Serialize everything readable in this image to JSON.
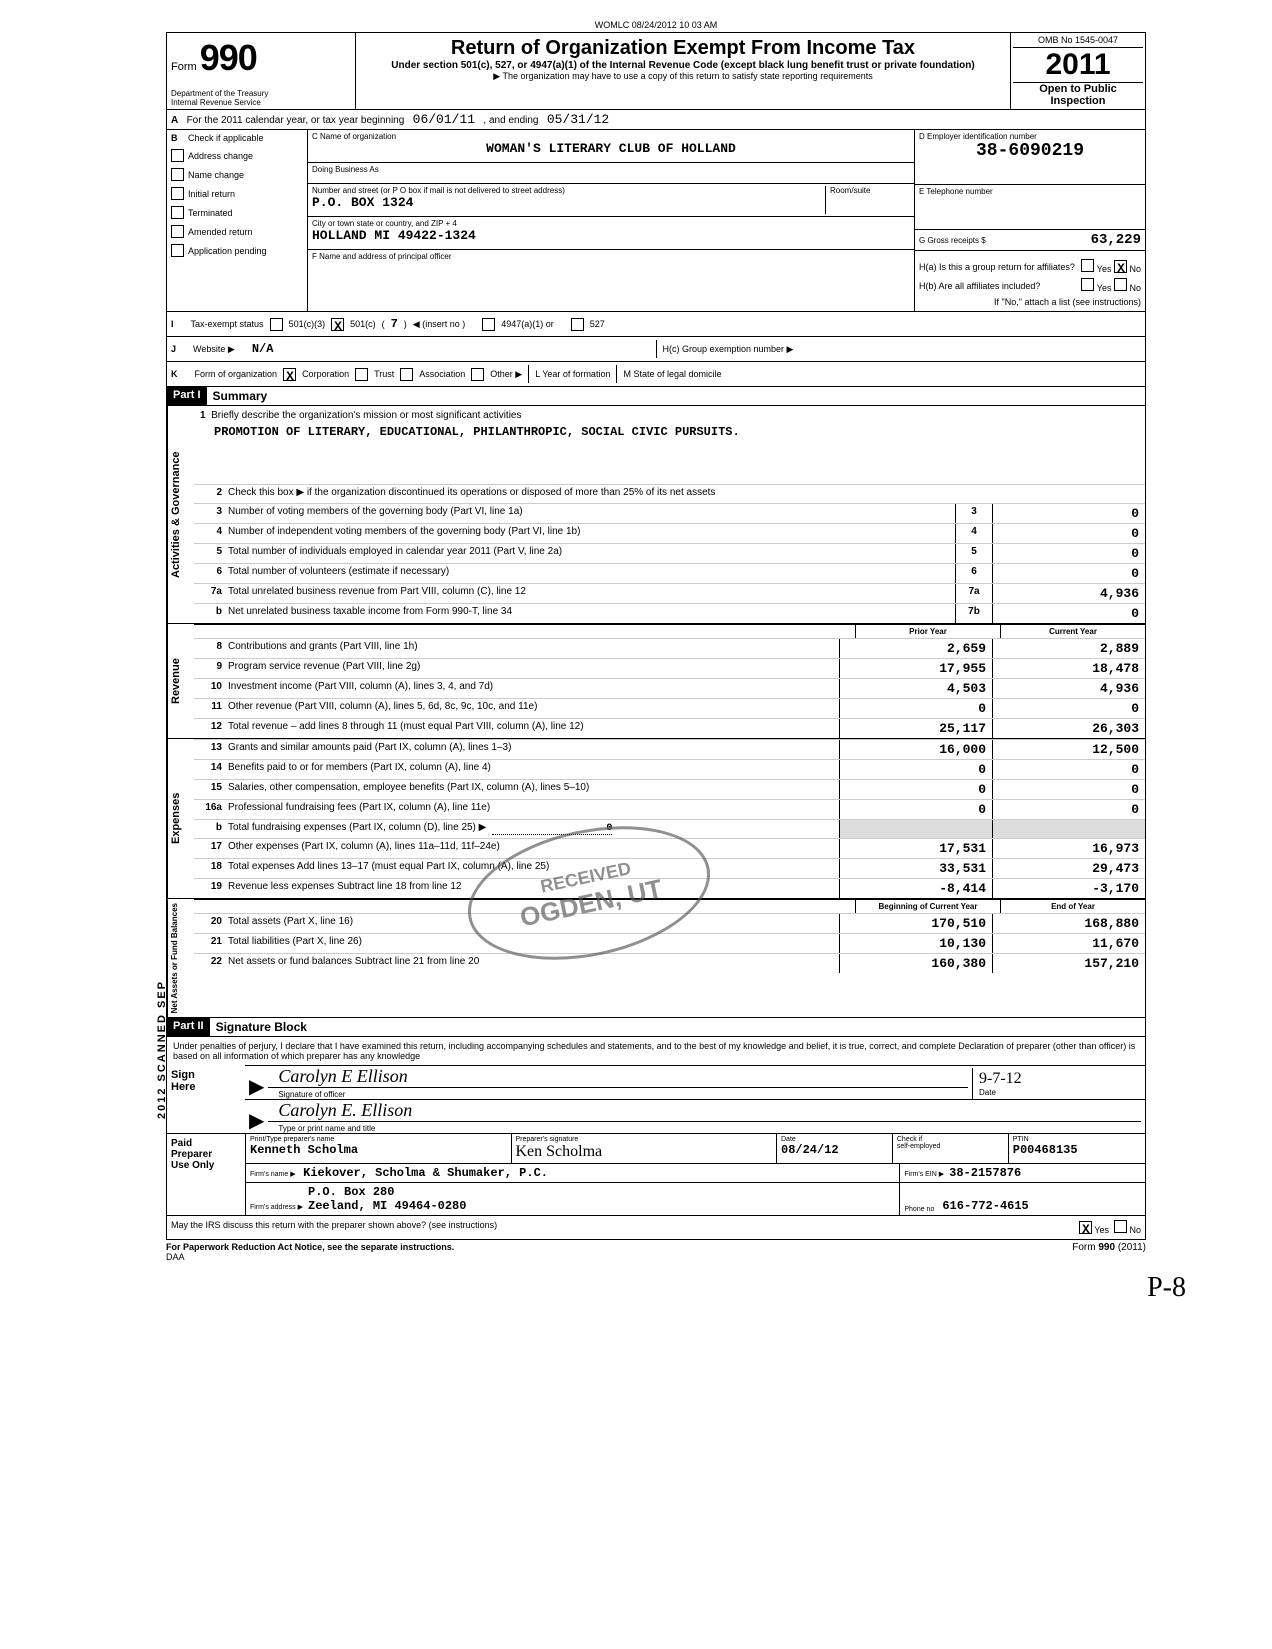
{
  "top_stamp": "WOMLC 08/24/2012 10 03 AM",
  "header": {
    "form_word": "Form",
    "form_num": "990",
    "dept1": "Department of the Treasury",
    "dept2": "Internal Revenue Service",
    "title": "Return of Organization Exempt From Income Tax",
    "sub": "Under section 501(c), 527, or 4947(a)(1) of the Internal Revenue Code (except black lung benefit trust or private foundation)",
    "sub2": "▶ The organization may have to use a copy of this return to satisfy state reporting requirements",
    "omb": "OMB No 1545-0047",
    "year": "2011",
    "open1": "Open to Public",
    "open2": "Inspection"
  },
  "rowA": {
    "prefix": "For the 2011 calendar year, or tax year beginning",
    "start": "06/01/11",
    "mid": ", and ending",
    "end": "05/31/12"
  },
  "colB": {
    "head": "Check if applicable",
    "items": [
      "Address change",
      "Name change",
      "Initial return",
      "Terminated",
      "Amended return",
      "Application pending"
    ]
  },
  "colC": {
    "name_lbl": "C  Name of organization",
    "name": "WOMAN'S LITERARY CLUB OF HOLLAND",
    "dba_lbl": "Doing Business As",
    "dba": "",
    "street_lbl": "Number and street (or P O  box if mail is not delivered to street address)",
    "room_lbl": "Room/suite",
    "street": "P.O. BOX 1324",
    "city_lbl": "City or town  state or country, and ZIP + 4",
    "city": "HOLLAND                    MI   49422-1324",
    "officer_lbl": "F  Name and address of principal officer"
  },
  "colDE": {
    "d_lbl": "D    Employer identification number",
    "ein": "38-6090219",
    "e_lbl": "E    Telephone number",
    "phone": "",
    "g_lbl": "G  Gross receipts $",
    "gross": "63,229"
  },
  "hArea": {
    "ha": "H(a)   Is this a group return for affiliates?",
    "hb": "H(b)   Are all affiliates included?",
    "hb2": "If \"No,\" attach a list  (see instructions)",
    "hc": "H(c)   Group exemption number ▶",
    "yes": "Yes",
    "no": "No"
  },
  "status": {
    "label": "Tax-exempt status",
    "c3": "501(c)(3)",
    "c": "501(c)",
    "insert": "7",
    "insert_lbl": "◀ (insert no )",
    "a1": "4947(a)(1) or",
    "s527": "527"
  },
  "rowJ": {
    "label": "Website ▶",
    "value": "N/A"
  },
  "rowK": {
    "label": "Form of organization",
    "corp": "Corporation",
    "trust": "Trust",
    "assoc": "Association",
    "other": "Other ▶",
    "l_lbl": "L   Year of formation",
    "m_lbl": "M   State of legal domicile"
  },
  "part1": {
    "header": "Part I",
    "title": "Summary",
    "ag_label": "Activities & Governance",
    "rev_label": "Revenue",
    "exp_label": "Expenses",
    "nab_label": "Net Assets or\nFund Balances",
    "l1": "Briefly describe the organization's mission or most significant activities",
    "mission": "PROMOTION OF LITERARY, EDUCATIONAL, PHILANTHROPIC, SOCIAL CIVIC PURSUITS.",
    "l2": "Check this box ▶        if the organization discontinued its operations or disposed of more than 25% of its net assets",
    "lines_ag": [
      {
        "n": "3",
        "d": "Number of voting members of the governing body (Part VI, line 1a)",
        "c": "3",
        "v": "0"
      },
      {
        "n": "4",
        "d": "Number of independent voting members of the governing body (Part VI, line 1b)",
        "c": "4",
        "v": "0"
      },
      {
        "n": "5",
        "d": "Total number of individuals employed in calendar year 2011 (Part V, line 2a)",
        "c": "5",
        "v": "0"
      },
      {
        "n": "6",
        "d": "Total number of volunteers (estimate if necessary)",
        "c": "6",
        "v": "0"
      },
      {
        "n": "7a",
        "d": "Total unrelated business revenue from Part VIII, column (C), line 12",
        "c": "7a",
        "v": "4,936"
      },
      {
        "n": "b",
        "d": "Net unrelated business taxable income from Form 990-T, line 34",
        "c": "7b",
        "v": "0"
      }
    ],
    "col_prior": "Prior Year",
    "col_current": "Current Year",
    "lines_rev": [
      {
        "n": "8",
        "d": "Contributions and grants (Part VIII, line 1h)",
        "p": "2,659",
        "c": "2,889"
      },
      {
        "n": "9",
        "d": "Program service revenue (Part VIII, line 2g)",
        "p": "17,955",
        "c": "18,478"
      },
      {
        "n": "10",
        "d": "Investment income (Part VIII, column (A), lines 3, 4, and 7d)",
        "p": "4,503",
        "c": "4,936"
      },
      {
        "n": "11",
        "d": "Other revenue (Part VIII, column (A), lines 5, 6d, 8c, 9c, 10c, and 11e)",
        "p": "0",
        "c": "0"
      },
      {
        "n": "12",
        "d": "Total revenue – add lines 8 through 11 (must equal Part VIII, column (A), line 12)",
        "p": "25,117",
        "c": "26,303"
      }
    ],
    "lines_exp": [
      {
        "n": "13",
        "d": "Grants and similar amounts paid (Part IX, column (A), lines 1–3)",
        "p": "16,000",
        "c": "12,500"
      },
      {
        "n": "14",
        "d": "Benefits paid to or for members (Part IX, column (A), line 4)",
        "p": "0",
        "c": "0"
      },
      {
        "n": "15",
        "d": "Salaries, other compensation, employee benefits (Part IX, column (A), lines 5–10)",
        "p": "0",
        "c": "0"
      },
      {
        "n": "16a",
        "d": "Professional fundraising fees (Part IX, column (A), line 11e)",
        "p": "0",
        "c": "0"
      }
    ],
    "l16b_d": "Total fundraising expenses (Part IX, column (D), line 25) ▶",
    "l16b_v": "0",
    "lines_exp2": [
      {
        "n": "17",
        "d": "Other expenses (Part IX, column (A), lines 11a–11d, 11f–24e)",
        "p": "17,531",
        "c": "16,973"
      },
      {
        "n": "18",
        "d": "Total expenses  Add lines 13–17 (must equal Part IX, column (A), line 25)",
        "p": "33,531",
        "c": "29,473"
      },
      {
        "n": "19",
        "d": "Revenue less expenses  Subtract line 18 from line 12",
        "p": "-8,414",
        "c": "-3,170"
      }
    ],
    "col_begin": "Beginning of Current Year",
    "col_end": "End of Year",
    "lines_nab": [
      {
        "n": "20",
        "d": "Total assets (Part X, line 16)",
        "p": "170,510",
        "c": "168,880"
      },
      {
        "n": "21",
        "d": "Total liabilities (Part X, line 26)",
        "p": "10,130",
        "c": "11,670"
      },
      {
        "n": "22",
        "d": "Net assets or fund balances  Subtract line 21 from line 20",
        "p": "160,380",
        "c": "157,210"
      }
    ]
  },
  "part2": {
    "header": "Part II",
    "title": "Signature Block",
    "text": "Under penalties of perjury, I declare that I have examined this return, including accompanying schedules and statements, and to the best of my knowledge and belief, it is true, correct, and complete  Declaration of preparer (other than officer) is based on all information of which preparer has any knowledge",
    "sign": "Sign",
    "here": "Here",
    "sig_val": "Carolyn E Ellison",
    "sig_lbl": "Signature of officer",
    "type_val": "Carolyn E. Ellison",
    "type_lbl": "Type or print name and title",
    "date_lbl": "Date",
    "date_val": "9-7-12"
  },
  "prep": {
    "label1": "Paid",
    "label2": "Preparer",
    "label3": "Use Only",
    "name_lbl": "Print/Type preparer's name",
    "name": "Kenneth Scholma",
    "psig_lbl": "Preparer's signature",
    "psig": "Ken Scholma",
    "pdate_lbl": "Date",
    "pdate": "08/24/12",
    "check_lbl": "Check        if",
    "se_lbl": "self-employed",
    "ptin_lbl": "PTIN",
    "ptin": "P00468135",
    "firm_lbl": "Firm's name      ▶",
    "firm": "Kiekover, Scholma & Shumaker, P.C.",
    "ein_lbl": "Firm's EIN ▶",
    "ein": "38-2157876",
    "addr_lbl": "Firm's address   ▶",
    "addr1": "P.O. Box 280",
    "addr2": "Zeeland, MI  49464-0280",
    "phone_lbl": "Phone no",
    "phone": "616-772-4615"
  },
  "footer": {
    "discuss": "May the IRS discuss this return with the preparer shown above? (see instructions)",
    "yes": "Yes",
    "no": "No",
    "pra": "For Paperwork Reduction Act Notice, see the separate instructions.",
    "daa": "DAA",
    "form": "Form 990 (2011)"
  },
  "stamp": {
    "l1": "RECEIVED",
    "l3": "OGDEN, UT"
  },
  "side_stamp": "2012   SCANNED  SEP",
  "corner": "P-8"
}
